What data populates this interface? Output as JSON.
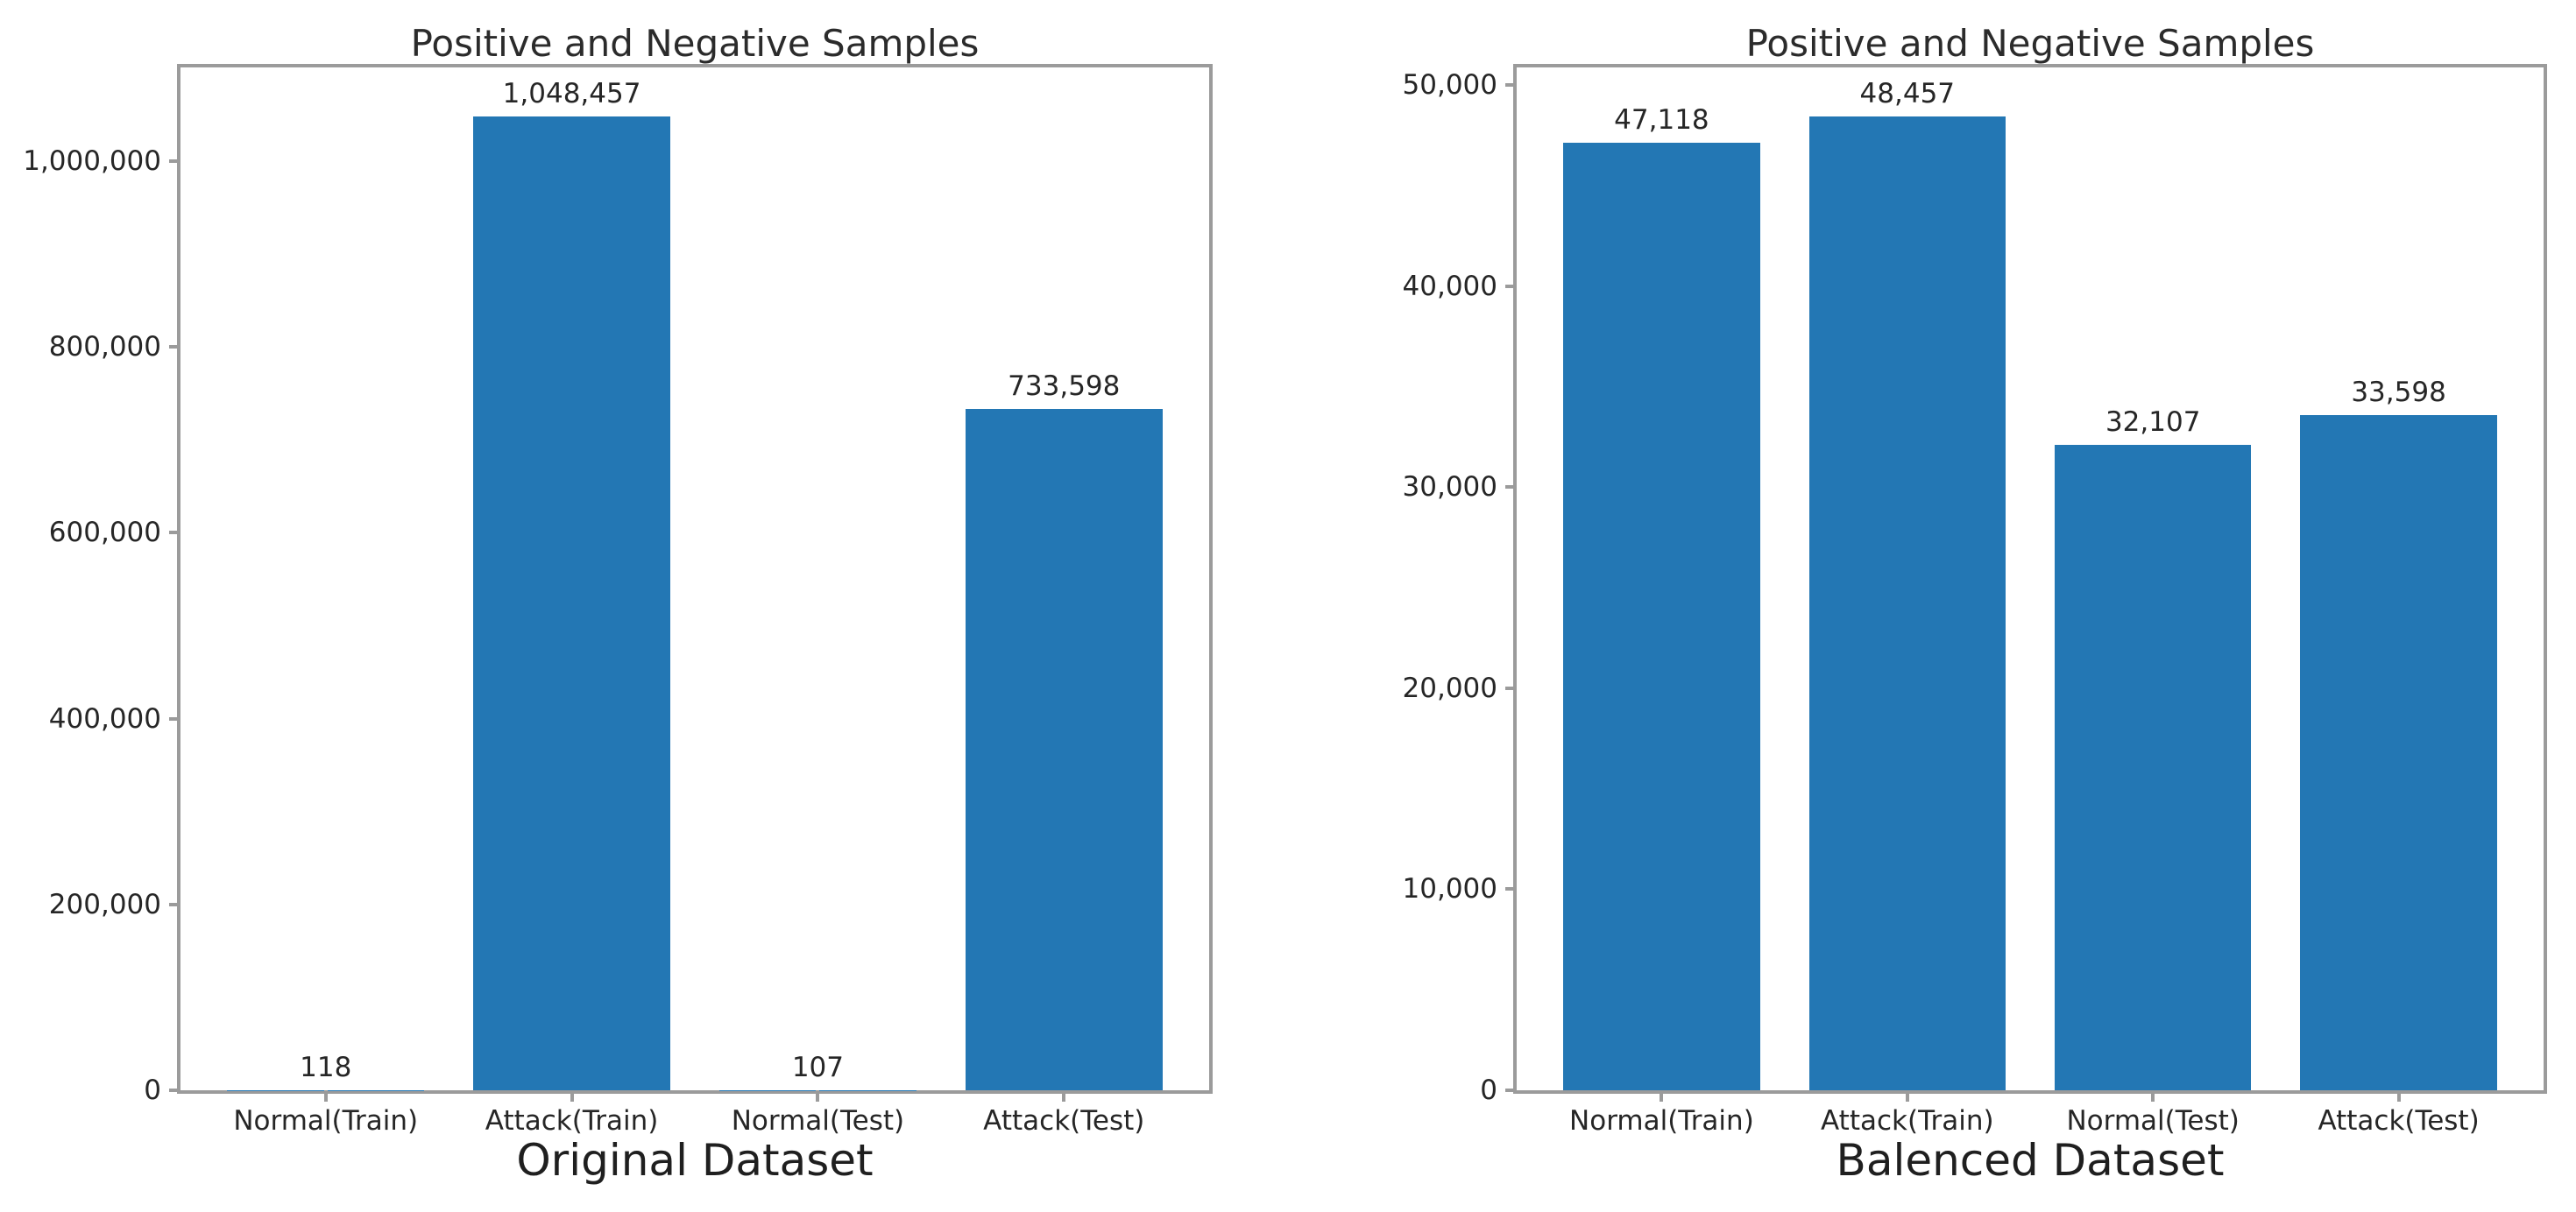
{
  "figure": {
    "background": "#ffffff",
    "bar_color": "#2377b4",
    "spine_color": "#9b9b9b",
    "text_color": "#262626"
  },
  "chart_data": [
    {
      "type": "bar",
      "title": "Positive and Negative Samples",
      "xlabel": "Original Dataset",
      "ylabel": "",
      "categories": [
        "Normal(Train)",
        "Attack(Train)",
        "Normal(Test)",
        "Attack(Test)"
      ],
      "values": [
        118,
        1048457,
        107,
        733598
      ],
      "bar_labels": [
        "118",
        "1,048,457",
        "107",
        "733,598"
      ],
      "ylim": [
        0,
        1100880
      ],
      "yticks": [
        {
          "value": 0,
          "label": "0"
        },
        {
          "value": 200000,
          "label": "200,000"
        },
        {
          "value": 400000,
          "label": "400,000"
        },
        {
          "value": 600000,
          "label": "600,000"
        },
        {
          "value": 800000,
          "label": "800,000"
        },
        {
          "value": 1000000,
          "label": "1,000,000"
        }
      ],
      "bar_color": "#2377b4",
      "grid": false,
      "legend": null
    },
    {
      "type": "bar",
      "title": "Positive and Negative Samples",
      "xlabel": "Balenced Dataset",
      "ylabel": "",
      "categories": [
        "Normal(Train)",
        "Attack(Train)",
        "Normal(Test)",
        "Attack(Test)"
      ],
      "values": [
        47118,
        48457,
        32107,
        33598
      ],
      "bar_labels": [
        "47,118",
        "48,457",
        "32,107",
        "33,598"
      ],
      "ylim": [
        0,
        50880
      ],
      "yticks": [
        {
          "value": 0,
          "label": "0"
        },
        {
          "value": 10000,
          "label": "10,000"
        },
        {
          "value": 20000,
          "label": "20,000"
        },
        {
          "value": 30000,
          "label": "30,000"
        },
        {
          "value": 40000,
          "label": "40,000"
        },
        {
          "value": 50000,
          "label": "50,000"
        }
      ],
      "bar_color": "#2377b4",
      "grid": false,
      "legend": null
    }
  ]
}
